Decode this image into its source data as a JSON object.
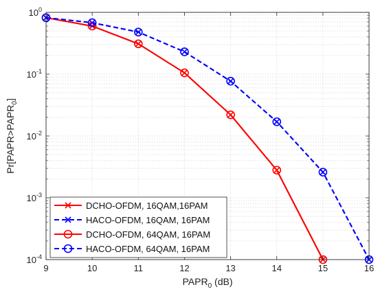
{
  "chart_data": {
    "type": "line",
    "xlabel": {
      "main": "PAPR",
      "sub": "0",
      "rest": " (dB)"
    },
    "ylabel": {
      "main": "Pr[PAPR>PAPR",
      "sub": "0",
      "rest": "]"
    },
    "xlim": [
      9,
      16
    ],
    "ylim": [
      0.0001,
      1
    ],
    "yscale": "log",
    "grid": true,
    "legend_position": "bottom-left",
    "x_ticks": [
      "9",
      "10",
      "11",
      "12",
      "13",
      "14",
      "15",
      "16"
    ],
    "y_ticks": [
      {
        "base": "10",
        "exp": "0"
      },
      {
        "base": "10",
        "exp": "-1"
      },
      {
        "base": "10",
        "exp": "-2"
      },
      {
        "base": "10",
        "exp": "-3"
      },
      {
        "base": "10",
        "exp": "-4"
      }
    ],
    "series": [
      {
        "name": "DCHO-OFDM, 16QAM,16PAM",
        "color": "#ff0000",
        "dash": "solid",
        "marker": "x",
        "x": [
          9,
          10,
          11,
          12,
          13,
          14,
          15
        ],
        "y": [
          0.82,
          0.6,
          0.31,
          0.105,
          0.022,
          0.0028,
          0.0001
        ]
      },
      {
        "name": "HACO-OFDM, 16QAM, 16PAM",
        "color": "#0000ff",
        "dash": "dashed",
        "marker": "x",
        "x": [
          9,
          10,
          11,
          12,
          13,
          14,
          15,
          16
        ],
        "y": [
          0.82,
          0.68,
          0.48,
          0.23,
          0.077,
          0.017,
          0.0026,
          0.0001
        ]
      },
      {
        "name": "DCHO-OFDM, 64QAM, 16PAM",
        "color": "#ff0000",
        "dash": "solid",
        "marker": "o",
        "x": [
          9,
          10,
          11,
          12,
          13,
          14,
          15
        ],
        "y": [
          0.82,
          0.6,
          0.31,
          0.105,
          0.022,
          0.0028,
          0.0001
        ]
      },
      {
        "name": "HACO-OFDM, 64QAM, 16PAM",
        "color": "#0000ff",
        "dash": "dashed",
        "marker": "o",
        "x": [
          9,
          10,
          11,
          12,
          13,
          14,
          15,
          16
        ],
        "y": [
          0.82,
          0.68,
          0.48,
          0.23,
          0.077,
          0.017,
          0.0026,
          0.0001
        ]
      }
    ]
  }
}
